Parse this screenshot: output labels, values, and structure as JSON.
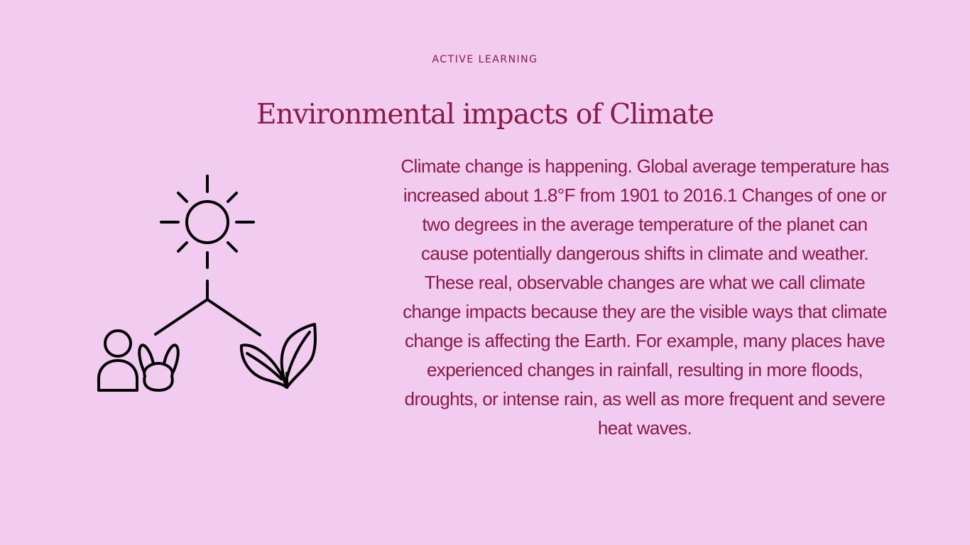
{
  "slide": {
    "eyebrow": "ACTIVE LEARNING",
    "title": "Environmental impacts of Climate",
    "body": "Climate change is happening. Global average temperature has increased about 1.8°F from 1901 to 2016.1 Changes of one or two degrees in the average temperature of the planet can cause potentially dangerous shifts in climate and weather. These real, observable changes are what we call climate change impacts because they are the visible ways that climate change is affecting the Earth. For example, many places have experienced changes in rainfall, resulting in more floods, droughts, or intense rain, as well as more frequent and severe heat waves."
  },
  "illustration": {
    "icons": [
      "sun-icon",
      "person-icon",
      "rabbit-icon",
      "leaf-icon"
    ]
  },
  "colors": {
    "background": "#f2cbf0",
    "accent": "#8b1a45",
    "icon_stroke": "#000000"
  }
}
